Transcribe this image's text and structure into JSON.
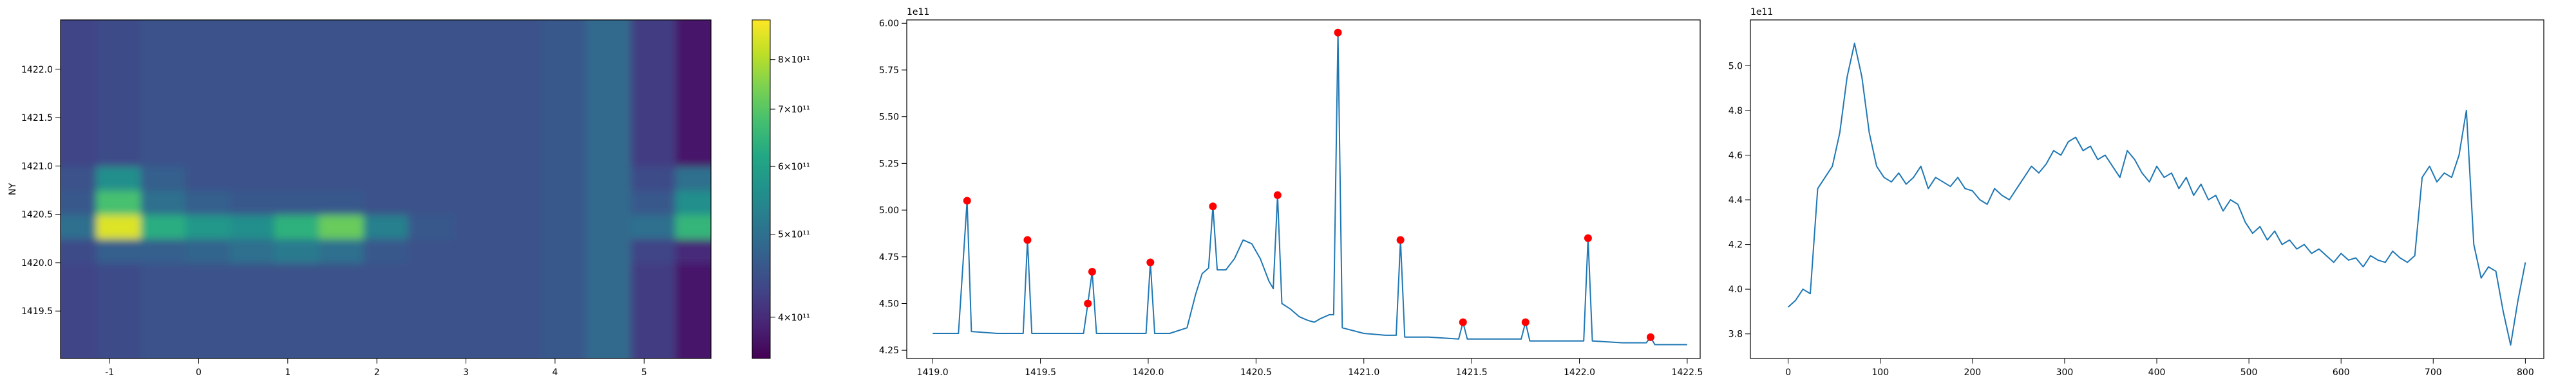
{
  "chart_data": [
    {
      "type": "heatmap",
      "y_label": "NY",
      "colormap": "viridis",
      "log_color": true,
      "xlim": [
        -1.55,
        5.75
      ],
      "ylim": [
        1419.01,
        1422.51
      ],
      "xticks": [
        -1,
        0,
        1,
        2,
        3,
        4,
        5
      ],
      "yticks": [
        1419.5,
        {
          "value": 1420,
          "label": "1420.0"
        },
        1420.5,
        {
          "value": 1421,
          "label": "1421.0"
        },
        1421.5,
        {
          "value": 1422,
          "label": "1422.0"
        }
      ],
      "clim": [
        358000000000.0,
        890000000000.0
      ],
      "colorbar_ticks": [
        {
          "value": 400000000000.0,
          "label": "4×10¹¹"
        },
        {
          "value": 500000000000.0,
          "label": "5×10¹¹"
        },
        {
          "value": 600000000000.0,
          "label": "6×10¹¹"
        },
        {
          "value": 700000000000.0,
          "label": "7×10¹¹"
        },
        {
          "value": 800000000000.0,
          "label": "8×10¹¹"
        }
      ],
      "x": [
        -1.4,
        -0.9,
        -0.4,
        0.1,
        0.6,
        1.1,
        1.6,
        2.1,
        2.6,
        3.1,
        3.6,
        4.1,
        4.6,
        5.1,
        5.6
      ],
      "y": [
        1419.125,
        1419.375,
        1419.625,
        1419.875,
        1420.125,
        1420.375,
        1420.625,
        1420.875,
        1421.125,
        1421.375,
        1421.625,
        1421.875,
        1422.125,
        1422.375
      ],
      "z": [
        [
          430000000000.0,
          440000000000.0,
          450000000000.0,
          450000000000.0,
          450000000000.0,
          450000000000.0,
          450000000000.0,
          450000000000.0,
          450000000000.0,
          450000000000.0,
          450000000000.0,
          460000000000.0,
          490000000000.0,
          420000000000.0,
          380000000000.0
        ],
        [
          430000000000.0,
          440000000000.0,
          450000000000.0,
          450000000000.0,
          450000000000.0,
          450000000000.0,
          450000000000.0,
          450000000000.0,
          450000000000.0,
          450000000000.0,
          450000000000.0,
          460000000000.0,
          490000000000.0,
          420000000000.0,
          380000000000.0
        ],
        [
          430000000000.0,
          440000000000.0,
          450000000000.0,
          450000000000.0,
          450000000000.0,
          450000000000.0,
          450000000000.0,
          450000000000.0,
          450000000000.0,
          450000000000.0,
          450000000000.0,
          460000000000.0,
          490000000000.0,
          420000000000.0,
          380000000000.0
        ],
        [
          430000000000.0,
          440000000000.0,
          450000000000.0,
          450000000000.0,
          450000000000.0,
          450000000000.0,
          450000000000.0,
          450000000000.0,
          450000000000.0,
          450000000000.0,
          450000000000.0,
          460000000000.0,
          490000000000.0,
          420000000000.0,
          380000000000.0
        ],
        [
          440000000000.0,
          470000000000.0,
          470000000000.0,
          480000000000.0,
          500000000000.0,
          520000000000.0,
          500000000000.0,
          460000000000.0,
          450000000000.0,
          450000000000.0,
          450000000000.0,
          460000000000.0,
          490000000000.0,
          430000000000.0,
          400000000000.0
        ],
        [
          500000000000.0,
          850000000000.0,
          630000000000.0,
          580000000000.0,
          560000000000.0,
          640000000000.0,
          720000000000.0,
          530000000000.0,
          460000000000.0,
          450000000000.0,
          450000000000.0,
          460000000000.0,
          490000000000.0,
          500000000000.0,
          650000000000.0
        ],
        [
          460000000000.0,
          680000000000.0,
          500000000000.0,
          470000000000.0,
          460000000000.0,
          460000000000.0,
          460000000000.0,
          450000000000.0,
          450000000000.0,
          450000000000.0,
          450000000000.0,
          460000000000.0,
          490000000000.0,
          460000000000.0,
          560000000000.0
        ],
        [
          450000000000.0,
          560000000000.0,
          470000000000.0,
          450000000000.0,
          450000000000.0,
          450000000000.0,
          450000000000.0,
          450000000000.0,
          450000000000.0,
          450000000000.0,
          450000000000.0,
          460000000000.0,
          490000000000.0,
          440000000000.0,
          500000000000.0
        ],
        [
          430000000000.0,
          440000000000.0,
          450000000000.0,
          450000000000.0,
          450000000000.0,
          450000000000.0,
          450000000000.0,
          450000000000.0,
          450000000000.0,
          450000000000.0,
          450000000000.0,
          460000000000.0,
          490000000000.0,
          420000000000.0,
          380000000000.0
        ],
        [
          430000000000.0,
          440000000000.0,
          450000000000.0,
          450000000000.0,
          450000000000.0,
          450000000000.0,
          450000000000.0,
          450000000000.0,
          450000000000.0,
          450000000000.0,
          450000000000.0,
          460000000000.0,
          490000000000.0,
          420000000000.0,
          380000000000.0
        ],
        [
          430000000000.0,
          440000000000.0,
          450000000000.0,
          450000000000.0,
          450000000000.0,
          450000000000.0,
          450000000000.0,
          450000000000.0,
          450000000000.0,
          450000000000.0,
          450000000000.0,
          460000000000.0,
          490000000000.0,
          420000000000.0,
          380000000000.0
        ],
        [
          430000000000.0,
          440000000000.0,
          450000000000.0,
          450000000000.0,
          450000000000.0,
          450000000000.0,
          450000000000.0,
          450000000000.0,
          450000000000.0,
          450000000000.0,
          450000000000.0,
          460000000000.0,
          490000000000.0,
          420000000000.0,
          380000000000.0
        ],
        [
          430000000000.0,
          440000000000.0,
          450000000000.0,
          450000000000.0,
          450000000000.0,
          450000000000.0,
          450000000000.0,
          450000000000.0,
          450000000000.0,
          450000000000.0,
          450000000000.0,
          460000000000.0,
          490000000000.0,
          420000000000.0,
          380000000000.0
        ],
        [
          430000000000.0,
          440000000000.0,
          450000000000.0,
          450000000000.0,
          450000000000.0,
          450000000000.0,
          450000000000.0,
          450000000000.0,
          450000000000.0,
          450000000000.0,
          450000000000.0,
          460000000000.0,
          490000000000.0,
          420000000000.0,
          380000000000.0
        ]
      ]
    },
    {
      "type": "line",
      "y_offset_label": "1e11",
      "xlim": [
        1418.88,
        1422.56
      ],
      "ylim": [
        4.206,
        6.018
      ],
      "xticks": [
        {
          "value": 1419,
          "label": "1419.0"
        },
        1419.5,
        {
          "value": 1420,
          "label": "1420.0"
        },
        1420.5,
        {
          "value": 1421,
          "label": "1421.0"
        },
        1421.5,
        {
          "value": 1422,
          "label": "1422.0"
        },
        1422.5
      ],
      "yticks": [
        4.25,
        {
          "value": 4.5,
          "label": "4.50"
        },
        4.75,
        {
          "value": 5,
          "label": "5.00"
        },
        5.25,
        {
          "value": 5.5,
          "label": "5.50"
        },
        5.75,
        {
          "value": 6,
          "label": "6.00"
        }
      ],
      "series": [
        {
          "color": "#1f77b4",
          "x": [
            1419.0,
            1419.12,
            1419.16,
            1419.18,
            1419.3,
            1419.42,
            1419.44,
            1419.46,
            1419.6,
            1419.7,
            1419.72,
            1419.74,
            1419.76,
            1419.9,
            1419.99,
            1420.01,
            1420.03,
            1420.1,
            1420.18,
            1420.22,
            1420.25,
            1420.28,
            1420.3,
            1420.32,
            1420.36,
            1420.4,
            1420.44,
            1420.48,
            1420.52,
            1420.56,
            1420.58,
            1420.6,
            1420.62,
            1420.66,
            1420.7,
            1420.74,
            1420.77,
            1420.8,
            1420.84,
            1420.86,
            1420.88,
            1420.9,
            1421.0,
            1421.1,
            1421.15,
            1421.17,
            1421.19,
            1421.3,
            1421.44,
            1421.46,
            1421.48,
            1421.6,
            1421.73,
            1421.75,
            1421.77,
            1421.9,
            1422.02,
            1422.04,
            1422.06,
            1422.2,
            1422.31,
            1422.33,
            1422.35,
            1422.5
          ],
          "values": [
            4.34,
            4.34,
            5.05,
            4.35,
            4.34,
            4.34,
            4.84,
            4.34,
            4.34,
            4.34,
            4.5,
            4.67,
            4.34,
            4.34,
            4.34,
            4.72,
            4.34,
            4.34,
            4.37,
            4.55,
            4.66,
            4.69,
            5.02,
            4.68,
            4.68,
            4.74,
            4.84,
            4.82,
            4.74,
            4.62,
            4.58,
            5.08,
            4.5,
            4.47,
            4.43,
            4.41,
            4.4,
            4.42,
            4.44,
            4.44,
            5.95,
            4.37,
            4.34,
            4.33,
            4.33,
            4.84,
            4.32,
            4.32,
            4.31,
            4.4,
            4.31,
            4.31,
            4.31,
            4.4,
            4.3,
            4.3,
            4.3,
            4.85,
            4.3,
            4.29,
            4.29,
            4.32,
            4.28,
            4.28
          ]
        },
        {
          "color": "#ff0000",
          "marker": "dot",
          "x": [
            1419.16,
            1419.44,
            1419.72,
            1419.74,
            1420.01,
            1420.3,
            1420.6,
            1420.88,
            1421.17,
            1421.46,
            1421.75,
            1422.04,
            1422.33
          ],
          "values": [
            5.05,
            4.84,
            4.5,
            4.67,
            4.72,
            5.02,
            5.08,
            5.95,
            4.84,
            4.4,
            4.4,
            4.85,
            4.32
          ]
        }
      ]
    },
    {
      "type": "line",
      "y_offset_label": "1e11",
      "xlim": [
        -41,
        820
      ],
      "ylim": [
        3.69,
        5.205
      ],
      "xticks": [
        0,
        100,
        200,
        300,
        400,
        500,
        600,
        700,
        800
      ],
      "yticks": [
        3.8,
        {
          "value": 4,
          "label": "4.0"
        },
        4.2,
        4.4,
        4.6,
        4.8,
        {
          "value": 5,
          "label": "5.0"
        }
      ],
      "series": [
        {
          "color": "#1f77b4",
          "x": [
            0,
            8,
            16,
            24,
            32,
            40,
            48,
            56,
            64,
            72,
            80,
            88,
            96,
            104,
            112,
            120,
            128,
            136,
            144,
            152,
            160,
            168,
            176,
            184,
            192,
            200,
            208,
            216,
            224,
            232,
            240,
            248,
            256,
            264,
            272,
            280,
            288,
            296,
            304,
            312,
            320,
            328,
            336,
            344,
            352,
            360,
            368,
            376,
            384,
            392,
            400,
            408,
            416,
            424,
            432,
            440,
            448,
            456,
            464,
            472,
            480,
            488,
            496,
            504,
            512,
            520,
            528,
            536,
            544,
            552,
            560,
            568,
            576,
            584,
            592,
            600,
            608,
            616,
            624,
            632,
            640,
            648,
            656,
            664,
            672,
            680,
            688,
            696,
            704,
            712,
            720,
            728,
            736,
            744,
            752,
            760,
            768,
            776,
            784,
            792,
            800
          ],
          "values": [
            3.92,
            3.95,
            4.0,
            3.98,
            4.45,
            4.5,
            4.55,
            4.7,
            4.95,
            5.1,
            4.95,
            4.7,
            4.55,
            4.5,
            4.48,
            4.52,
            4.47,
            4.5,
            4.55,
            4.45,
            4.5,
            4.48,
            4.46,
            4.5,
            4.45,
            4.44,
            4.4,
            4.38,
            4.45,
            4.42,
            4.4,
            4.45,
            4.5,
            4.55,
            4.52,
            4.56,
            4.62,
            4.6,
            4.66,
            4.68,
            4.62,
            4.64,
            4.58,
            4.6,
            4.55,
            4.5,
            4.62,
            4.58,
            4.52,
            4.48,
            4.55,
            4.5,
            4.52,
            4.45,
            4.5,
            4.42,
            4.47,
            4.4,
            4.42,
            4.35,
            4.4,
            4.38,
            4.3,
            4.25,
            4.28,
            4.22,
            4.26,
            4.2,
            4.22,
            4.18,
            4.2,
            4.16,
            4.18,
            4.15,
            4.12,
            4.16,
            4.13,
            4.14,
            4.1,
            4.15,
            4.13,
            4.12,
            4.17,
            4.14,
            4.12,
            4.15,
            4.5,
            4.55,
            4.48,
            4.52,
            4.5,
            4.6,
            4.8,
            4.2,
            4.05,
            4.1,
            4.08,
            3.9,
            3.75,
            3.95,
            4.12
          ]
        }
      ]
    }
  ]
}
